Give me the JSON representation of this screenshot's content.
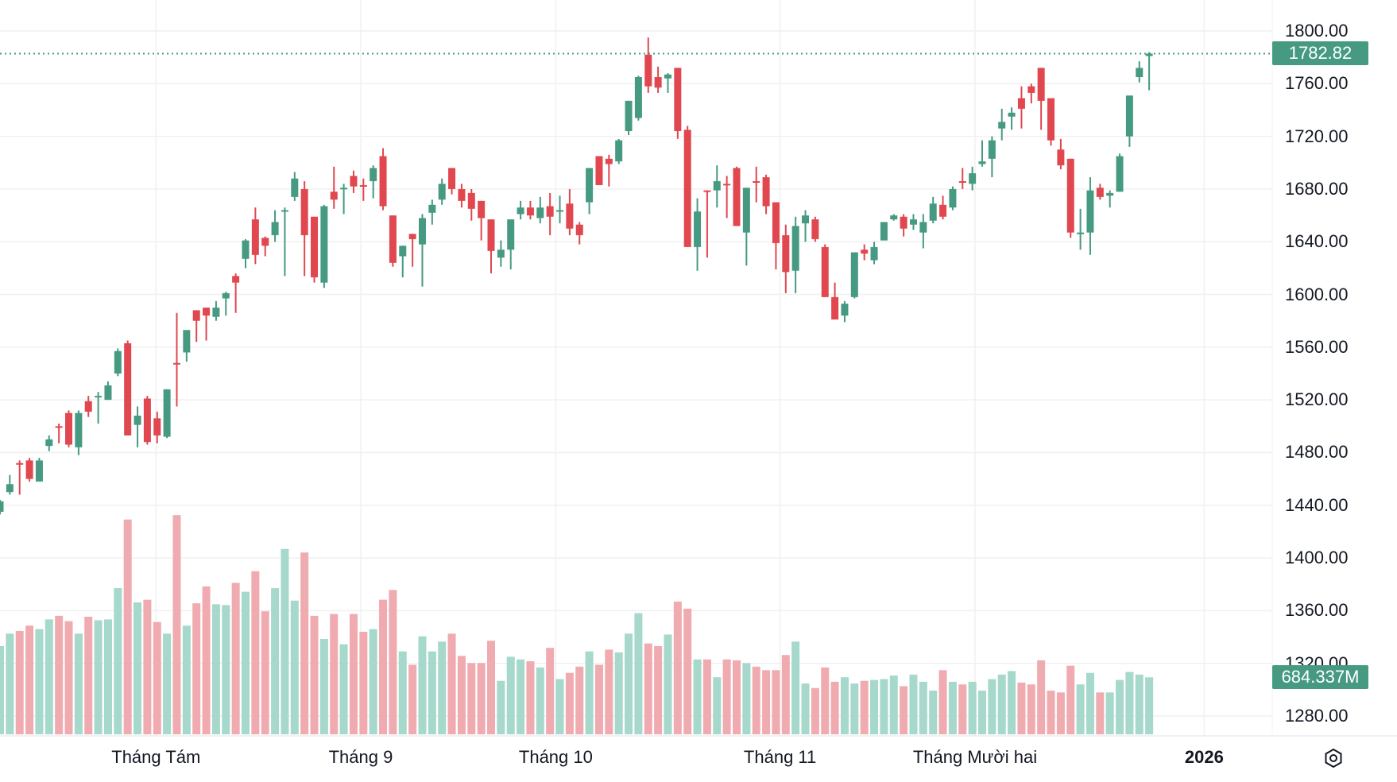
{
  "chart_data": {
    "type": "candlestick",
    "title": "",
    "price_axis": {
      "ticks": [
        "1800.00",
        "1760.00",
        "1720.00",
        "1680.00",
        "1640.00",
        "1600.00",
        "1560.00",
        "1520.00",
        "1480.00",
        "1440.00",
        "1400.00",
        "1360.00",
        "1320.00",
        "1280.00"
      ],
      "ylim": [
        1280,
        1800
      ]
    },
    "time_axis": {
      "ticks": [
        {
          "label": "Tháng Tám",
          "index": 16,
          "bold": false
        },
        {
          "label": "Tháng 9",
          "index": 37,
          "bold": false
        },
        {
          "label": "Tháng 10",
          "index": 57,
          "bold": false
        },
        {
          "label": "Tháng 11",
          "index": 80,
          "bold": false
        },
        {
          "label": "Tháng Mười hai",
          "index": 100,
          "bold": false
        },
        {
          "label": "2026",
          "index": 123.5,
          "bold": true
        }
      ]
    },
    "last_price": {
      "value": 1782.82,
      "label": "1782.82"
    },
    "last_volume": {
      "value": 684.337,
      "label": "684.337M"
    },
    "volume_unit": "M",
    "colors": {
      "up": "#469a82",
      "down": "#e0474f",
      "up_volume": "#a6d8cc",
      "down_volume": "#f0abb0",
      "grid": "#f0f0f0"
    },
    "candles_ohlc": [
      [
        1435,
        1444,
        1433,
        1443
      ],
      [
        1450,
        1463,
        1448,
        1456
      ],
      [
        1472,
        1474,
        1448,
        1471
      ],
      [
        1474,
        1476,
        1458,
        1460
      ],
      [
        1458,
        1476,
        1458,
        1474
      ],
      [
        1485,
        1493,
        1481,
        1490
      ],
      [
        1500,
        1502,
        1487,
        1499
      ],
      [
        1510,
        1512,
        1484,
        1486
      ],
      [
        1484,
        1512,
        1478,
        1510
      ],
      [
        1519,
        1523,
        1507,
        1511
      ],
      [
        1522,
        1526,
        1502,
        1523
      ],
      [
        1520,
        1534,
        1520,
        1531
      ],
      [
        1540,
        1559,
        1538,
        1557
      ],
      [
        1563,
        1565,
        1493,
        1493
      ],
      [
        1501,
        1515,
        1484,
        1508
      ],
      [
        1521,
        1523,
        1486,
        1488
      ],
      [
        1506,
        1511,
        1487,
        1493
      ],
      [
        1492,
        1528,
        1491,
        1528
      ],
      [
        1548,
        1586,
        1515,
        1547
      ],
      [
        1556,
        1573,
        1549,
        1573
      ],
      [
        1588,
        1588,
        1564,
        1580
      ],
      [
        1590,
        1590,
        1565,
        1584
      ],
      [
        1583,
        1595,
        1580,
        1590
      ],
      [
        1597,
        1602,
        1584,
        1601
      ],
      [
        1614,
        1616,
        1586,
        1609
      ],
      [
        1627,
        1642,
        1620,
        1641
      ],
      [
        1657,
        1666,
        1623,
        1630
      ],
      [
        1643,
        1644,
        1629,
        1637
      ],
      [
        1645,
        1664,
        1640,
        1655
      ],
      [
        1663,
        1666,
        1614,
        1664
      ],
      [
        1674,
        1693,
        1671,
        1688
      ],
      [
        1680,
        1686,
        1614,
        1645
      ],
      [
        1659,
        1659,
        1609,
        1613
      ],
      [
        1609,
        1668,
        1605,
        1667
      ],
      [
        1678,
        1697,
        1665,
        1672
      ],
      [
        1680,
        1684,
        1661,
        1681
      ],
      [
        1690,
        1694,
        1677,
        1682
      ],
      [
        1683,
        1688,
        1671,
        1682
      ],
      [
        1686,
        1698,
        1673,
        1696
      ],
      [
        1705,
        1711,
        1664,
        1667
      ],
      [
        1660,
        1660,
        1621,
        1624
      ],
      [
        1629,
        1637,
        1613,
        1637
      ],
      [
        1646,
        1646,
        1621,
        1642
      ],
      [
        1638,
        1661,
        1606,
        1658
      ],
      [
        1662,
        1672,
        1653,
        1668
      ],
      [
        1672,
        1688,
        1668,
        1684
      ],
      [
        1696,
        1696,
        1676,
        1680
      ],
      [
        1680,
        1684,
        1666,
        1671
      ],
      [
        1677,
        1680,
        1656,
        1665
      ],
      [
        1671,
        1671,
        1641,
        1658
      ],
      [
        1657,
        1657,
        1616,
        1633
      ],
      [
        1628,
        1641,
        1621,
        1634
      ],
      [
        1634,
        1657,
        1619,
        1657
      ],
      [
        1661,
        1671,
        1657,
        1666
      ],
      [
        1666,
        1671,
        1657,
        1660
      ],
      [
        1658,
        1674,
        1654,
        1666
      ],
      [
        1667,
        1677,
        1645,
        1659
      ],
      [
        1663,
        1675,
        1654,
        1664
      ],
      [
        1669,
        1680,
        1645,
        1650
      ],
      [
        1653,
        1655,
        1638,
        1645
      ],
      [
        1670,
        1696,
        1661,
        1696
      ],
      [
        1705,
        1705,
        1683,
        1683
      ],
      [
        1703,
        1706,
        1682,
        1699
      ],
      [
        1701,
        1718,
        1699,
        1717
      ],
      [
        1724,
        1747,
        1721,
        1747
      ],
      [
        1734,
        1766,
        1732,
        1765
      ],
      [
        1782,
        1795,
        1753,
        1758
      ],
      [
        1765,
        1773,
        1753,
        1757
      ],
      [
        1764,
        1768,
        1753,
        1767
      ],
      [
        1772,
        1772,
        1718,
        1724
      ],
      [
        1725,
        1728,
        1636,
        1636
      ],
      [
        1636,
        1673,
        1618,
        1663
      ],
      [
        1679,
        1679,
        1628,
        1678
      ],
      [
        1679,
        1698,
        1666,
        1686
      ],
      [
        1684,
        1690,
        1658,
        1683
      ],
      [
        1696,
        1697,
        1652,
        1652
      ],
      [
        1647,
        1681,
        1622,
        1681
      ],
      [
        1686,
        1697,
        1670,
        1685
      ],
      [
        1689,
        1691,
        1661,
        1667
      ],
      [
        1670,
        1670,
        1619,
        1639
      ],
      [
        1645,
        1653,
        1601,
        1617
      ],
      [
        1618,
        1659,
        1601,
        1652
      ],
      [
        1654,
        1664,
        1640,
        1660
      ],
      [
        1657,
        1659,
        1640,
        1642
      ],
      [
        1636,
        1638,
        1598,
        1598
      ],
      [
        1598,
        1609,
        1581,
        1581
      ],
      [
        1584,
        1595,
        1579,
        1593
      ],
      [
        1598,
        1632,
        1597,
        1632
      ],
      [
        1634,
        1638,
        1626,
        1631
      ],
      [
        1626,
        1640,
        1623,
        1636
      ],
      [
        1641,
        1655,
        1641,
        1655
      ],
      [
        1657,
        1661,
        1656,
        1660
      ],
      [
        1659,
        1661,
        1644,
        1650
      ],
      [
        1653,
        1661,
        1649,
        1657
      ],
      [
        1647,
        1661,
        1635,
        1655
      ],
      [
        1656,
        1674,
        1654,
        1669
      ],
      [
        1668,
        1675,
        1657,
        1659
      ],
      [
        1666,
        1682,
        1664,
        1680
      ],
      [
        1686,
        1696,
        1680,
        1685
      ],
      [
        1684,
        1697,
        1679,
        1692
      ],
      [
        1699,
        1717,
        1697,
        1701
      ],
      [
        1703,
        1720,
        1689,
        1717
      ],
      [
        1726,
        1741,
        1717,
        1731
      ],
      [
        1735,
        1742,
        1725,
        1738
      ],
      [
        1749,
        1758,
        1726,
        1741
      ],
      [
        1758,
        1760,
        1745,
        1753
      ],
      [
        1772,
        1772,
        1725,
        1747
      ],
      [
        1749,
        1749,
        1713,
        1717
      ],
      [
        1710,
        1718,
        1695,
        1698
      ],
      [
        1703,
        1703,
        1643,
        1647
      ],
      [
        1646,
        1665,
        1634,
        1647
      ],
      [
        1647,
        1689,
        1630,
        1679
      ],
      [
        1681,
        1684,
        1672,
        1674
      ],
      [
        1675,
        1679,
        1666,
        1677
      ],
      [
        1678,
        1707,
        1678,
        1705
      ],
      [
        1720,
        1751,
        1712,
        1751
      ],
      [
        1765,
        1777,
        1761,
        1772
      ],
      [
        1781,
        1784,
        1755,
        1782.82
      ]
    ],
    "volume": [
      1059,
      1209,
      1241,
      1305,
      1263,
      1380,
      1423,
      1359,
      1209,
      1412,
      1370,
      1380,
      1755,
      2579,
      1584,
      1616,
      1348,
      1209,
      2632,
      1305,
      1573,
      1776,
      1562,
      1552,
      1819,
      1712,
      1958,
      1477,
      1755,
      2226,
      1605,
      2183,
      1423,
      1145,
      1445,
      1081,
      1445,
      1231,
      1263,
      1616,
      1733,
      995,
      835,
      1177,
      995,
      1113,
      1209,
      942,
      856,
      856,
      1124,
      642,
      931,
      899,
      877,
      803,
      1038,
      663,
      738,
      813,
      995,
      835,
      1017,
      984,
      1209,
      1455,
      1091,
      1059,
      1198,
      1594,
      1509,
      899,
      899,
      685,
      899,
      888,
      856,
      813,
      770,
      770,
      952,
      1113,
      610,
      556,
      803,
      631,
      685,
      610,
      642,
      653,
      663,
      706,
      578,
      717,
      631,
      524,
      770,
      631,
      599,
      631,
      524,
      663,
      717,
      760,
      621,
      599,
      888,
      524,
      503,
      824,
      599,
      738,
      503,
      503,
      653,
      749,
      717,
      684.337
    ]
  }
}
